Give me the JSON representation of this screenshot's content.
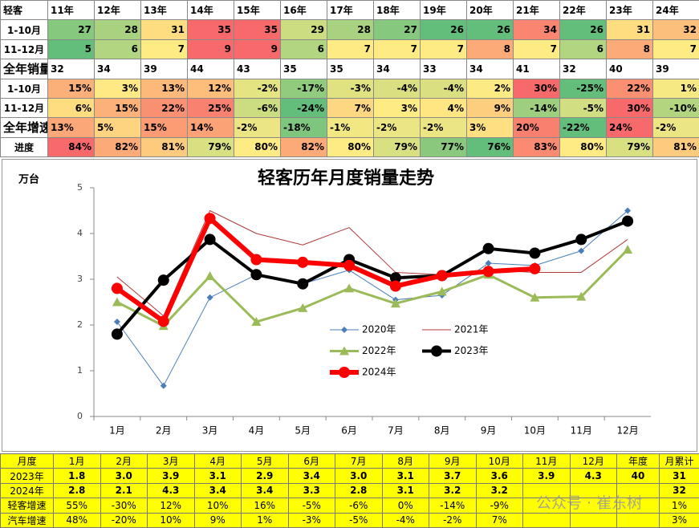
{
  "top_table": {
    "header": [
      "轻客",
      "11年",
      "12年",
      "13年",
      "14年",
      "15年",
      "16年",
      "17年",
      "18年",
      "19年",
      "20年",
      "21年",
      "22年",
      "23年",
      "24年"
    ],
    "rows": [
      [
        "1-10月",
        "27",
        "28",
        "31",
        "35",
        "35",
        "29",
        "28",
        "27",
        "26",
        "26",
        "34",
        "26",
        "31",
        "32"
      ],
      [
        "11-12月",
        "5",
        "6",
        "7",
        "9",
        "9",
        "6",
        "7",
        "7",
        "7",
        "8",
        "7",
        "6",
        "8",
        "7"
      ],
      [
        "全年销量",
        "32",
        "34",
        "39",
        "44",
        "43",
        "35",
        "35",
        "34",
        "33",
        "34",
        "41",
        "32",
        "40",
        "39"
      ],
      [
        "1-10月",
        "15%",
        "3%",
        "13%",
        "12%",
        "-2%",
        "-17%",
        "-3%",
        "-4%",
        "-4%",
        "2%",
        "30%",
        "-25%",
        "22%",
        "1%"
      ],
      [
        "11-12月",
        "6%",
        "15%",
        "22%",
        "25%",
        "-6%",
        "-24%",
        "7%",
        "3%",
        "4%",
        "9%",
        "-14%",
        "-5%",
        "30%",
        "-10%"
      ],
      [
        "全年增速",
        "13%",
        "5%",
        "15%",
        "14%",
        "-2%",
        "-18%",
        "-1%",
        "-2%",
        "-2%",
        "3%",
        "20%",
        "-22%",
        "24%",
        "-2%"
      ],
      [
        "进度",
        "84%",
        "82%",
        "81%",
        "79%",
        "80%",
        "82%",
        "80%",
        "79%",
        "77%",
        "76%",
        "83%",
        "80%",
        "79%",
        "81%"
      ]
    ]
  },
  "chart_data": {
    "type": "line",
    "title": "轻客历年月度销量走势",
    "y_label": "万台",
    "categories": [
      "1月",
      "2月",
      "3月",
      "4月",
      "5月",
      "6月",
      "7月",
      "8月",
      "9月",
      "10月",
      "11月",
      "12月"
    ],
    "ylim": [
      0,
      5
    ],
    "yticks": [
      0,
      1,
      2,
      3,
      4,
      5
    ],
    "series": [
      {
        "name": "2020年",
        "color": "#4a7ebb",
        "marker": "diamond",
        "line_width": 1,
        "values": [
          2.07,
          0.67,
          2.6,
          3.1,
          2.9,
          3.2,
          2.55,
          2.65,
          3.35,
          3.3,
          3.62,
          4.5
        ]
      },
      {
        "name": "2021年",
        "color": "#b03a3a",
        "marker": "none",
        "line_width": 1,
        "values": [
          3.05,
          2.2,
          4.5,
          4.0,
          3.75,
          4.13,
          3.15,
          3.1,
          3.2,
          3.15,
          3.15,
          3.87
        ]
      },
      {
        "name": "2022年",
        "color": "#9bbb59",
        "marker": "triangle",
        "line_width": 3,
        "values": [
          2.5,
          1.98,
          3.07,
          2.07,
          2.37,
          2.8,
          2.47,
          2.73,
          3.1,
          2.6,
          2.62,
          3.65
        ]
      },
      {
        "name": "2023年",
        "color": "#000000",
        "marker": "circle",
        "line_width": 4,
        "values": [
          1.8,
          2.98,
          3.87,
          3.1,
          2.9,
          3.43,
          3.03,
          3.08,
          3.67,
          3.57,
          3.87,
          4.27
        ]
      },
      {
        "name": "2024年",
        "color": "#ff0000",
        "marker": "circle",
        "line_width": 6,
        "values": [
          2.8,
          2.08,
          4.33,
          3.43,
          3.37,
          3.3,
          2.85,
          3.08,
          3.17,
          3.23,
          null,
          null
        ]
      }
    ]
  },
  "bottom_table": {
    "header": [
      "月度",
      "1月",
      "2月",
      "3月",
      "4月",
      "5月",
      "6月",
      "7月",
      "8月",
      "9月",
      "10月",
      "11月",
      "12月",
      "年度",
      "月累计"
    ],
    "rows": [
      [
        "2023年",
        "1.8",
        "3.0",
        "3.9",
        "3.1",
        "2.9",
        "3.4",
        "3.0",
        "3.1",
        "3.7",
        "3.6",
        "3.9",
        "4.3",
        "40",
        "31"
      ],
      [
        "2024年",
        "2.8",
        "2.1",
        "4.3",
        "3.4",
        "3.4",
        "3.3",
        "2.8",
        "3.1",
        "3.2",
        "3.2",
        null,
        null,
        null,
        "32"
      ],
      [
        "轻客增速",
        "55%",
        "-30%",
        "12%",
        "10%",
        "16%",
        "-5%",
        "-6%",
        "0%",
        "-14%",
        "-9%",
        null,
        null,
        null,
        "1%"
      ],
      [
        "汽车增速",
        "48%",
        "-20%",
        "10%",
        "9%",
        "1%",
        "-3%",
        "-5%",
        "-4%",
        "-2%",
        "7%",
        null,
        null,
        null,
        "3%"
      ]
    ]
  },
  "watermark": "公众号 · 崔东树"
}
